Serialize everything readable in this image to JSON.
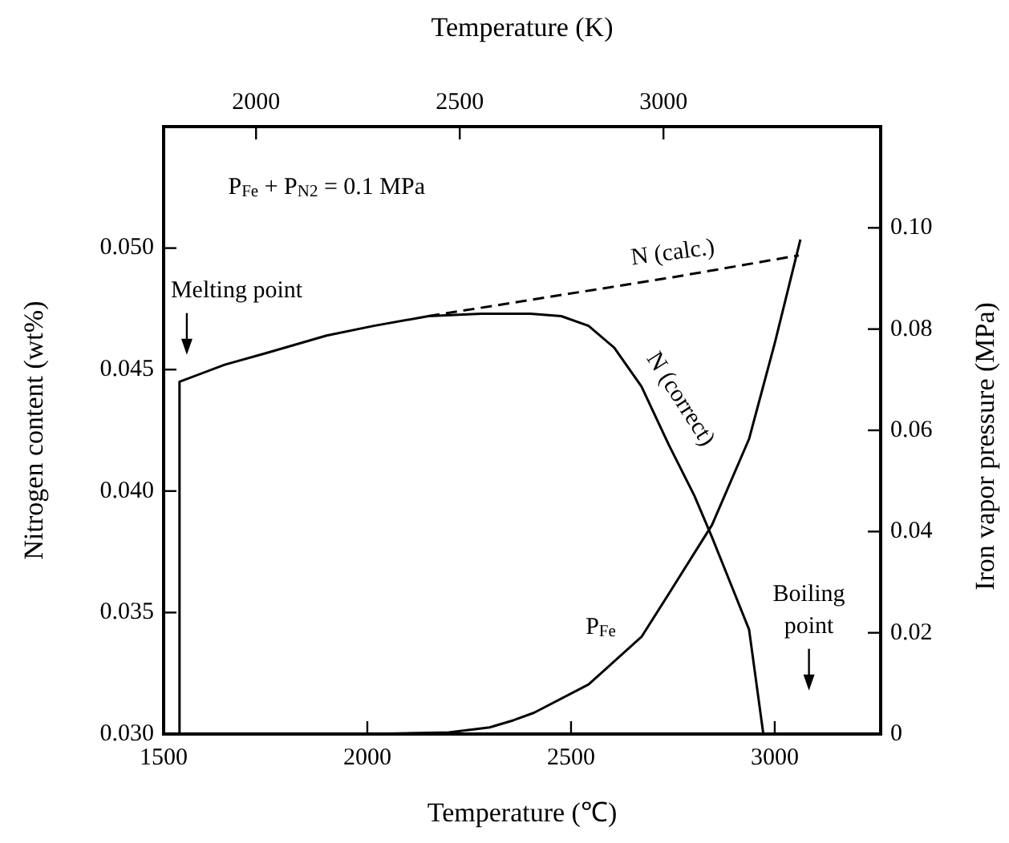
{
  "chart_data": {
    "type": "line",
    "xlabel": "Temperature (℃)",
    "x2label": "Temperature (K)",
    "ylabel": "Nitrogen content (wt%)",
    "y2label": "Iron vapor pressure (MPa)",
    "xlim": [
      1500,
      3260
    ],
    "xticks": [
      1500,
      2000,
      2500,
      3000
    ],
    "x2lim": [
      1773.15,
      3533.15
    ],
    "x2ticks": [
      2000,
      2500,
      3000
    ],
    "ylim": [
      0.03,
      0.055
    ],
    "yticks": [
      {
        "value": 0.03,
        "label": "0.030"
      },
      {
        "value": 0.035,
        "label": "0.035"
      },
      {
        "value": 0.04,
        "label": "0.040"
      },
      {
        "value": 0.045,
        "label": "0.045"
      },
      {
        "value": 0.05,
        "label": "0.050"
      }
    ],
    "y2lim": [
      0,
      0.12
    ],
    "y2ticks": [
      0,
      0.02,
      0.04,
      0.06,
      {
        "value": 0.08,
        "label": "0.08"
      },
      {
        "value": 0.1,
        "label": "0.10"
      }
    ],
    "grid": false,
    "legend": false,
    "marker": "none",
    "series": [
      {
        "name": "N (correct)",
        "color": "#000000",
        "line_style": "solid",
        "x": [
          1539,
          1539,
          1650,
          1756,
          1900,
          2016,
          2150,
          2280,
          2400,
          2476,
          2543,
          2606,
          2673,
          2740,
          2803,
          2846,
          2870,
          2937,
          2972
        ],
        "values": [
          0.03,
          0.0445,
          0.0452,
          0.0457,
          0.0464,
          0.0468,
          0.0472,
          0.0473,
          0.0473,
          0.0472,
          0.0468,
          0.0459,
          0.0443,
          0.0419,
          0.0398,
          0.0381,
          0.0371,
          0.0343,
          0.03
        ]
      },
      {
        "name": "N (calc.)",
        "color": "#000000",
        "line_style": "dashed",
        "x": [
          2150,
          2750,
          3059
        ],
        "values": [
          0.0472,
          0.0488,
          0.0497
        ]
      },
      {
        "name": "P$_{Fe}$",
        "color": "#000000",
        "line_style": "solid",
        "axis": "y2",
        "x": [
          2000,
          2200,
          2300,
          2358,
          2409,
          2543,
          2673,
          2740,
          2846,
          2937,
          3000,
          3063
        ],
        "values": [
          0,
          0.0003,
          0.0013,
          0.0027,
          0.0042,
          0.0098,
          0.0192,
          0.0277,
          0.0413,
          0.0583,
          0.0772,
          0.0977
        ]
      }
    ],
    "annotations": [
      "P$_{Fe}$ + P$_{N2}$ = 0.1 MPa",
      "Melting point",
      "Boiling point"
    ]
  }
}
